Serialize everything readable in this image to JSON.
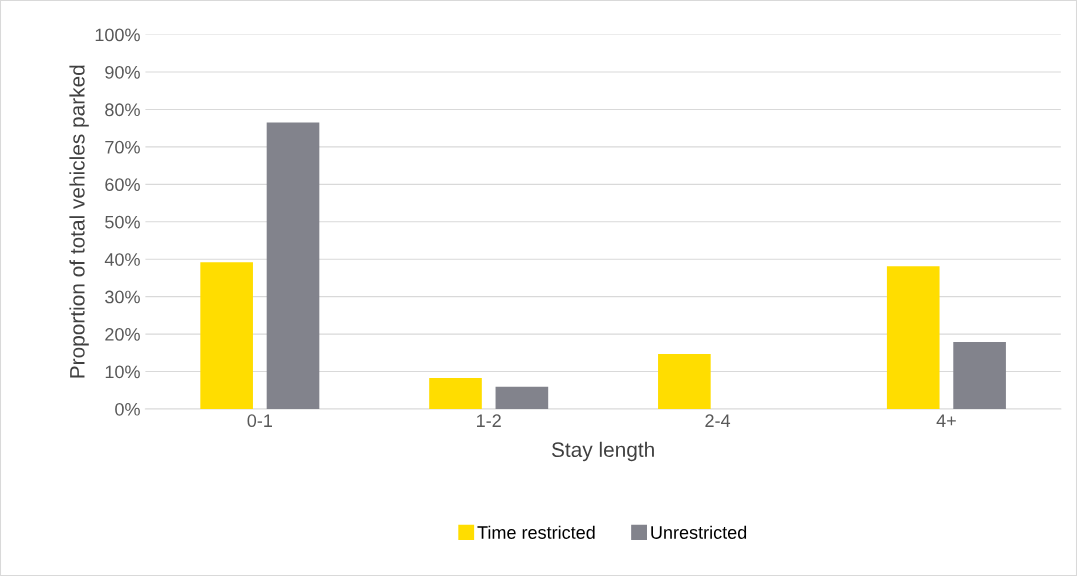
{
  "chart_data": {
    "type": "bar",
    "xlabel": "Stay length",
    "ylabel": "Proportion of total vehicles parked",
    "categories": [
      "0-1",
      "1-2",
      "2-4",
      "4+"
    ],
    "series": [
      {
        "name": "Time restricted",
        "color": "#ffdd00",
        "values": [
          39.2,
          8.3,
          14.7,
          38.1
        ]
      },
      {
        "name": "Unrestricted",
        "color": "#82838c",
        "values": [
          76.5,
          5.9,
          0,
          17.9
        ]
      }
    ],
    "ylim": [
      0,
      100
    ],
    "yticks": [
      {
        "value": 0,
        "label": "0%"
      },
      {
        "value": 10,
        "label": "10%"
      },
      {
        "value": 20,
        "label": "20%"
      },
      {
        "value": 30,
        "label": "30%"
      },
      {
        "value": 40,
        "label": "40%"
      },
      {
        "value": 50,
        "label": "50%"
      },
      {
        "value": 60,
        "label": "60%"
      },
      {
        "value": 70,
        "label": "70%"
      },
      {
        "value": 80,
        "label": "80%"
      },
      {
        "value": 90,
        "label": "90%"
      },
      {
        "value": 100,
        "label": "100%"
      }
    ],
    "grid": "y",
    "legend": "bottom"
  }
}
